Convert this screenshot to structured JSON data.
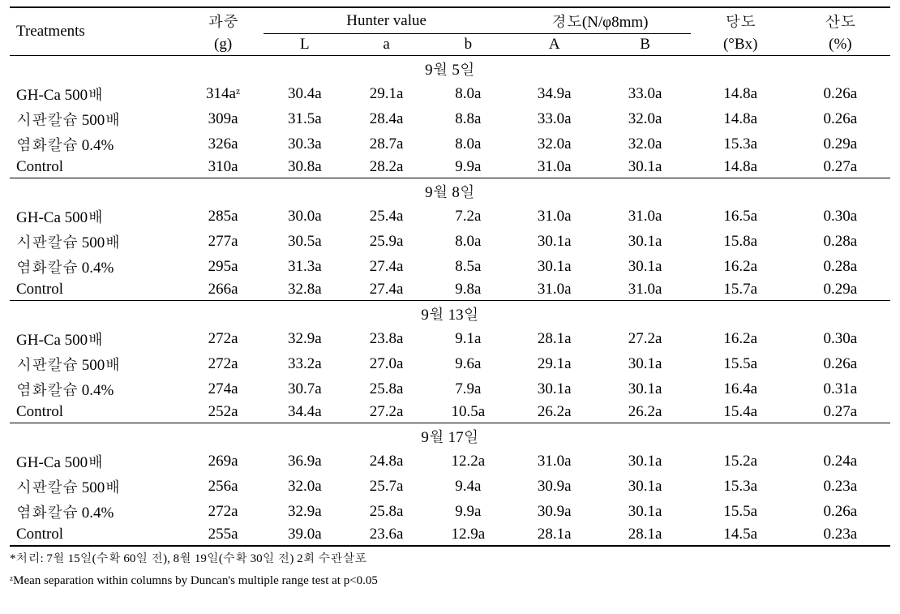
{
  "headers": {
    "treatments": "Treatments",
    "weight_top": "과중",
    "weight_unit": "(g)",
    "hunter": "Hunter value",
    "l": "L",
    "a": "a",
    "b": "b",
    "hardness": "경도(N/φ8mm)",
    "A": "A",
    "B": "B",
    "brix_top": "당도",
    "brix_unit": "(°Bx)",
    "acid_top": "산도",
    "acid_unit": "(%)"
  },
  "sections": [
    {
      "date": "9월 5일",
      "rows": [
        {
          "t": "GH-Ca 500배",
          "w": "314aᶻ",
          "l": "30.4a",
          "a": "29.1a",
          "b": "8.0a",
          "A": "34.9a",
          "B": "33.0a",
          "bx": "14.8a",
          "ac": "0.26a"
        },
        {
          "t": "시판칼슘 500배",
          "w": "309a",
          "l": "31.5a",
          "a": "28.4a",
          "b": "8.8a",
          "A": "33.0a",
          "B": "32.0a",
          "bx": "14.8a",
          "ac": "0.26a"
        },
        {
          "t": "염화칼슘 0.4%",
          "w": "326a",
          "l": "30.3a",
          "a": "28.7a",
          "b": "8.0a",
          "A": "32.0a",
          "B": "32.0a",
          "bx": "15.3a",
          "ac": "0.29a"
        },
        {
          "t": "Control",
          "w": "310a",
          "l": "30.8a",
          "a": "28.2a",
          "b": "9.9a",
          "A": "31.0a",
          "B": "30.1a",
          "bx": "14.8a",
          "ac": "0.27a"
        }
      ]
    },
    {
      "date": "9월 8일",
      "rows": [
        {
          "t": "GH-Ca 500배",
          "w": "285a",
          "l": "30.0a",
          "a": "25.4a",
          "b": "7.2a",
          "A": "31.0a",
          "B": "31.0a",
          "bx": "16.5a",
          "ac": "0.30a"
        },
        {
          "t": "시판칼슘 500배",
          "w": "277a",
          "l": "30.5a",
          "a": "25.9a",
          "b": "8.0a",
          "A": "30.1a",
          "B": "30.1a",
          "bx": "15.8a",
          "ac": "0.28a"
        },
        {
          "t": "염화칼슘 0.4%",
          "w": "295a",
          "l": "31.3a",
          "a": "27.4a",
          "b": "8.5a",
          "A": "30.1a",
          "B": "30.1a",
          "bx": "16.2a",
          "ac": "0.28a"
        },
        {
          "t": "Control",
          "w": "266a",
          "l": "32.8a",
          "a": "27.4a",
          "b": "9.8a",
          "A": "31.0a",
          "B": "31.0a",
          "bx": "15.7a",
          "ac": "0.29a"
        }
      ]
    },
    {
      "date": "9월 13일",
      "rows": [
        {
          "t": "GH-Ca 500배",
          "w": "272a",
          "l": "32.9a",
          "a": "23.8a",
          "b": "9.1a",
          "A": "28.1a",
          "B": "27.2a",
          "bx": "16.2a",
          "ac": "0.30a"
        },
        {
          "t": "시판칼슘 500배",
          "w": "272a",
          "l": "33.2a",
          "a": "27.0a",
          "b": "9.6a",
          "A": "29.1a",
          "B": "30.1a",
          "bx": "15.5a",
          "ac": "0.26a"
        },
        {
          "t": "염화칼슘 0.4%",
          "w": "274a",
          "l": "30.7a",
          "a": "25.8a",
          "b": "7.9a",
          "A": "30.1a",
          "B": "30.1a",
          "bx": "16.4a",
          "ac": "0.31a"
        },
        {
          "t": "Control",
          "w": "252a",
          "l": "34.4a",
          "a": "27.2a",
          "b": "10.5a",
          "A": "26.2a",
          "B": "26.2a",
          "bx": "15.4a",
          "ac": "0.27a"
        }
      ]
    },
    {
      "date": "9월 17일",
      "rows": [
        {
          "t": "GH-Ca 500배",
          "w": "269a",
          "l": "36.9a",
          "a": "24.8a",
          "b": "12.2a",
          "A": "31.0a",
          "B": "30.1a",
          "bx": "15.2a",
          "ac": "0.24a"
        },
        {
          "t": "시판칼슘 500배",
          "w": "256a",
          "l": "32.0a",
          "a": "25.7a",
          "b": "9.4a",
          "A": "30.9a",
          "B": "30.1a",
          "bx": "15.3a",
          "ac": "0.23a"
        },
        {
          "t": "염화칼슘 0.4%",
          "w": "272a",
          "l": "32.9a",
          "a": "25.8a",
          "b": "9.9a",
          "A": "30.9a",
          "B": "30.1a",
          "bx": "15.5a",
          "ac": "0.26a"
        },
        {
          "t": "Control",
          "w": "255a",
          "l": "39.0a",
          "a": "23.6a",
          "b": "12.9a",
          "A": "28.1a",
          "B": "28.1a",
          "bx": "14.5a",
          "ac": "0.23a"
        }
      ]
    }
  ],
  "footnotes": {
    "line1": "*처리: 7월 15일(수확 60일 전), 8월 19일(수확 30일 전) 2회 수관살포",
    "line2": "ᶻMean separation within columns by Duncan's multiple range test at p<0.05"
  },
  "style": {
    "font_size": 19,
    "footnote_font_size": 15,
    "text_color": "#000000",
    "background_color": "#ffffff",
    "border_thick": "2px",
    "border_thin": "1px"
  }
}
